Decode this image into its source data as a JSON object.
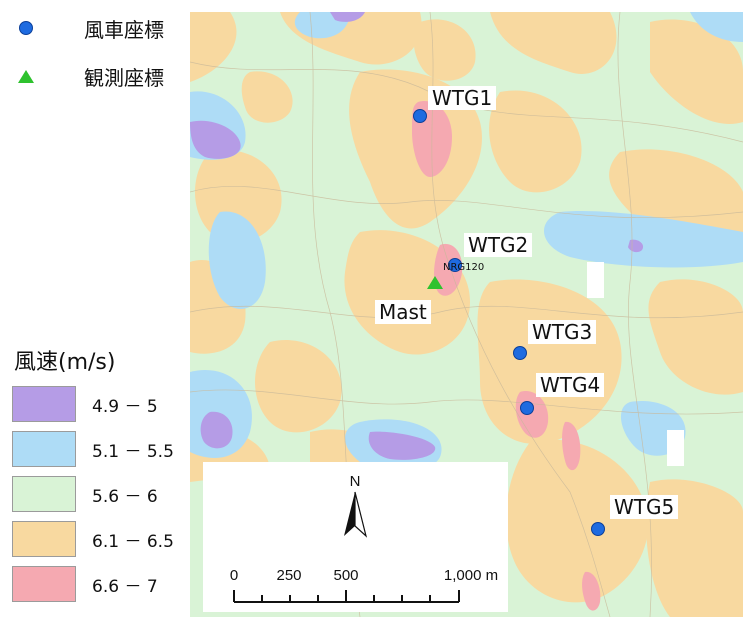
{
  "legend": {
    "turbine_label": "風車座標",
    "turbine_color": "#1e6be0",
    "mast_label": "観測座標",
    "mast_color": "#2ec22e"
  },
  "wind_speed_legend": {
    "title": "風速(m/s)",
    "classes": [
      {
        "label": "4.9 － 5",
        "color": "#b59ce6"
      },
      {
        "label": "5.1 － 5.5",
        "color": "#aedcf6"
      },
      {
        "label": "5.6 － 6",
        "color": "#d9f3d6"
      },
      {
        "label": "6.1 － 6.5",
        "color": "#f8d9a0"
      },
      {
        "label": "6.6 － 7",
        "color": "#f5a9b1"
      }
    ]
  },
  "map": {
    "turbines": [
      {
        "label": "WTG1"
      },
      {
        "label": "WTG2"
      },
      {
        "label": "WTG3"
      },
      {
        "label": "WTG4"
      },
      {
        "label": "WTG5"
      }
    ],
    "mast_label": "Mast",
    "mast_id_label": "NRG120"
  },
  "scale_bar": {
    "north_label": "N",
    "ticks": [
      "0",
      "250",
      "500",
      "1,000 m"
    ]
  }
}
